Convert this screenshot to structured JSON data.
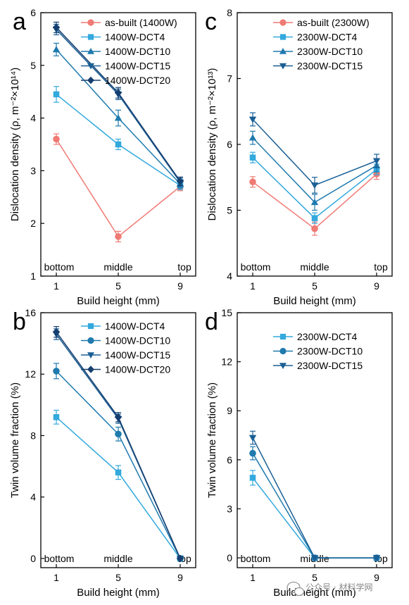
{
  "chart_data": [
    {
      "panel": "a",
      "type": "line",
      "x": [
        1,
        5,
        9
      ],
      "x_ticks": [
        1,
        5,
        9
      ],
      "xlim": [
        0,
        10
      ],
      "ylim": [
        1,
        6
      ],
      "y_ticks": [
        1,
        2,
        3,
        4,
        5,
        6
      ],
      "xlabel": "Build height (mm)",
      "ylabel": "Dislocation density (ρ, m⁻²×10¹⁴)",
      "position_labels": [
        "bottom",
        "middle",
        "top"
      ],
      "legend_position": "top-right",
      "series": [
        {
          "name": "as-built (1400W)",
          "values": [
            3.6,
            1.75,
            2.7
          ],
          "errors": [
            0.1,
            0.1,
            0.08
          ],
          "color": "#F07A74",
          "marker": "circle"
        },
        {
          "name": "1400W-DCT4",
          "values": [
            4.45,
            3.5,
            2.72
          ],
          "errors": [
            0.15,
            0.1,
            0.08
          ],
          "color": "#33A9DD",
          "marker": "square"
        },
        {
          "name": "1400W-DCT10",
          "values": [
            5.3,
            4.0,
            2.75
          ],
          "errors": [
            0.12,
            0.15,
            0.08
          ],
          "color": "#1F7AAE",
          "marker": "triangle-up"
        },
        {
          "name": "1400W-DCT15",
          "values": [
            5.68,
            4.45,
            2.78
          ],
          "errors": [
            0.1,
            0.1,
            0.08
          ],
          "color": "#1A5F94",
          "marker": "triangle-down"
        },
        {
          "name": "1400W-DCT20",
          "values": [
            5.72,
            4.48,
            2.8
          ],
          "errors": [
            0.1,
            0.1,
            0.08
          ],
          "color": "#163F70",
          "marker": "diamond"
        }
      ]
    },
    {
      "panel": "c",
      "type": "line",
      "x": [
        1,
        5,
        9
      ],
      "x_ticks": [
        1,
        5,
        9
      ],
      "xlim": [
        0,
        10
      ],
      "ylim": [
        4,
        8
      ],
      "y_ticks": [
        4,
        5,
        6,
        7,
        8
      ],
      "xlabel": "Build height (mm)",
      "ylabel": "Dislocation density (ρ, m⁻²×10¹³)",
      "position_labels": [
        "bottom",
        "middle",
        "top"
      ],
      "legend_position": "top-right",
      "series": [
        {
          "name": "as-built (2300W)",
          "values": [
            5.43,
            4.72,
            5.55
          ],
          "errors": [
            0.08,
            0.1,
            0.08
          ],
          "color": "#F07A74",
          "marker": "circle"
        },
        {
          "name": "2300W-DCT4",
          "values": [
            5.8,
            4.88,
            5.62
          ],
          "errors": [
            0.08,
            0.08,
            0.08
          ],
          "color": "#33A9DD",
          "marker": "square"
        },
        {
          "name": "2300W-DCT10",
          "values": [
            6.1,
            5.12,
            5.68
          ],
          "errors": [
            0.1,
            0.12,
            0.1
          ],
          "color": "#1F7AAE",
          "marker": "triangle-up"
        },
        {
          "name": "2300W-DCT15",
          "values": [
            6.38,
            5.38,
            5.75
          ],
          "errors": [
            0.1,
            0.12,
            0.1
          ],
          "color": "#1A5F94",
          "marker": "triangle-down"
        }
      ]
    },
    {
      "panel": "b",
      "type": "line",
      "x": [
        1,
        5,
        9
      ],
      "x_ticks": [
        1,
        5,
        9
      ],
      "xlim": [
        0,
        10
      ],
      "ylim": [
        -0.6,
        16
      ],
      "y_ticks": [
        0,
        4,
        8,
        12,
        16
      ],
      "xlabel": "Build height (mm)",
      "ylabel": "Twin volume fraction (%)",
      "position_labels": [
        "bottom",
        "middle",
        "top"
      ],
      "legend_position": "top-right",
      "series": [
        {
          "name": "1400W-DCT4",
          "values": [
            9.2,
            5.6,
            0
          ],
          "errors": [
            0.45,
            0.45,
            0
          ],
          "color": "#33A9DD",
          "marker": "square"
        },
        {
          "name": "1400W-DCT10",
          "values": [
            12.2,
            8.1,
            0
          ],
          "errors": [
            0.5,
            0.45,
            0
          ],
          "color": "#1F7AAE",
          "marker": "circle"
        },
        {
          "name": "1400W-DCT15",
          "values": [
            14.6,
            9.1,
            0
          ],
          "errors": [
            0.35,
            0.3,
            0
          ],
          "color": "#1A5F94",
          "marker": "triangle-down"
        },
        {
          "name": "1400W-DCT20",
          "values": [
            14.75,
            9.2,
            0
          ],
          "errors": [
            0.35,
            0.3,
            0
          ],
          "color": "#163F70",
          "marker": "diamond"
        }
      ]
    },
    {
      "panel": "d",
      "type": "line",
      "x": [
        1,
        5,
        9
      ],
      "x_ticks": [
        1,
        5,
        9
      ],
      "xlim": [
        0,
        10
      ],
      "ylim": [
        -0.6,
        15
      ],
      "y_ticks": [
        0,
        3,
        6,
        9,
        12,
        15
      ],
      "xlabel": "Build height (mm)",
      "ylabel": "Twin volume fraction (%)",
      "position_labels": [
        "bottom",
        "middle",
        "top"
      ],
      "legend_position": "top-right",
      "series": [
        {
          "name": "2300W-DCT4",
          "values": [
            4.9,
            0,
            0
          ],
          "errors": [
            0.45,
            0,
            0
          ],
          "color": "#33A9DD",
          "marker": "square"
        },
        {
          "name": "2300W-DCT10",
          "values": [
            6.4,
            0,
            0
          ],
          "errors": [
            0.4,
            0,
            0
          ],
          "color": "#1F7AAE",
          "marker": "circle"
        },
        {
          "name": "2300W-DCT15",
          "values": [
            7.35,
            0,
            0
          ],
          "errors": [
            0.4,
            0,
            0
          ],
          "color": "#1A5F94",
          "marker": "triangle-down"
        }
      ]
    }
  ],
  "watermark": "公众号 · 材料学网",
  "watermark_icon": "wechat-icon"
}
